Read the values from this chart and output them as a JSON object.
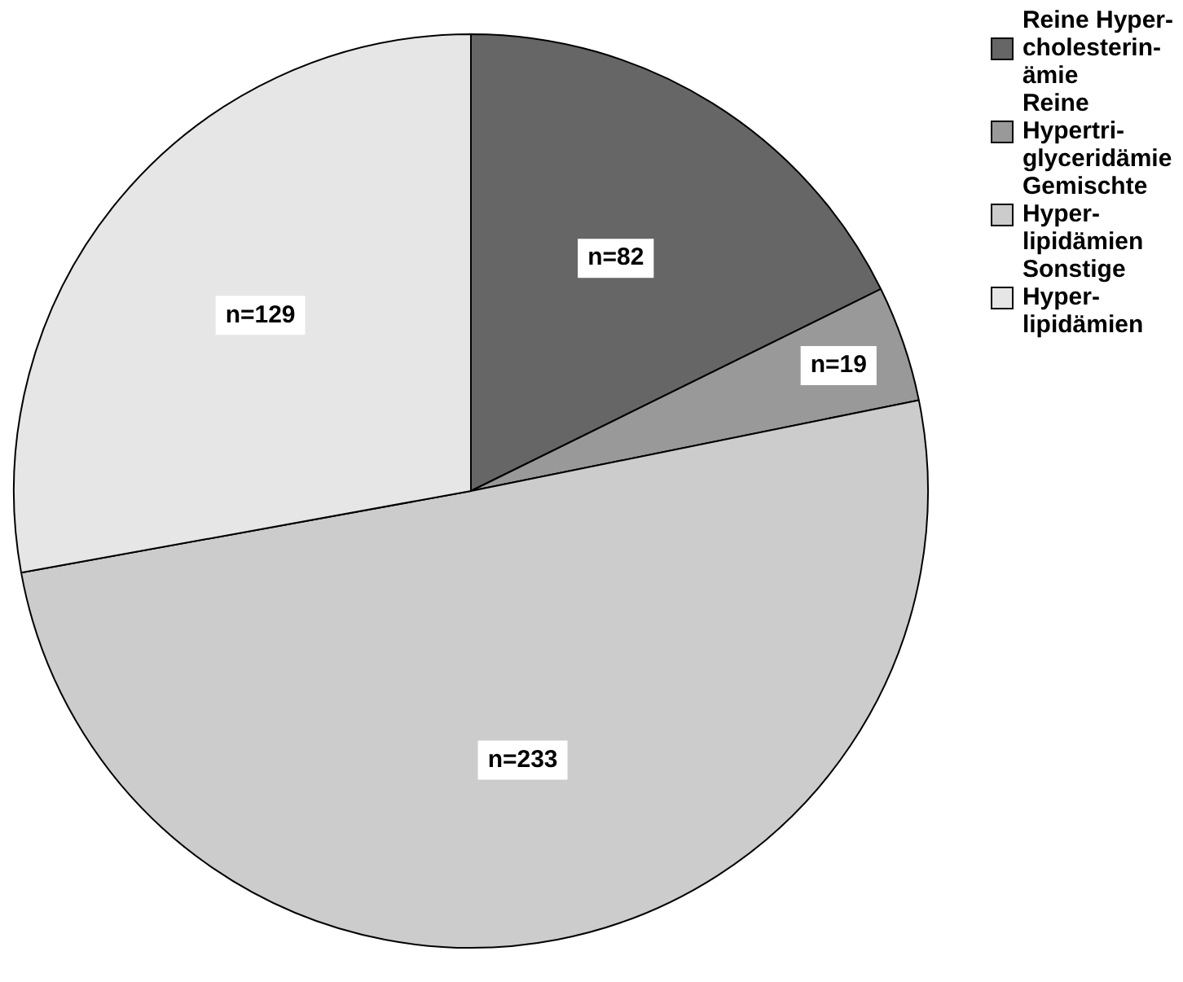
{
  "chart_data": {
    "type": "pie",
    "categories": [
      "Reine Hyper-\ncholesterin-\nämie",
      "Reine\nHypertri-\nglyceridämie",
      "Gemischte\nHyper-\nlipidämien",
      "Sonstige\nHyper-\nlipidämien"
    ],
    "values": [
      82,
      19,
      233,
      129
    ],
    "value_labels": [
      "n=82",
      "n=19",
      "n=233",
      "n=129"
    ],
    "colors": [
      "#666666",
      "#999999",
      "#cccccc",
      "#e6e6e6"
    ],
    "legend": "top right"
  }
}
